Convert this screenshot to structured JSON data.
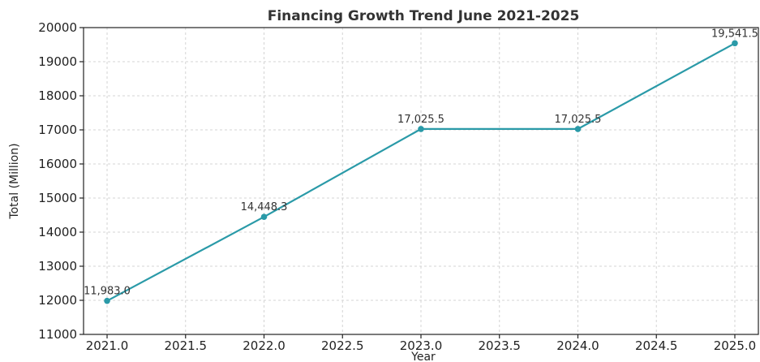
{
  "chart_data": {
    "type": "line",
    "title": "Financing Growth Trend June 2021-2025",
    "xlabel": "Year",
    "ylabel": "Total (Million)",
    "xlim": [
      2020.85,
      2025.15
    ],
    "ylim": [
      11000,
      20000
    ],
    "x_ticks": [
      2021.0,
      2021.5,
      2022.0,
      2022.5,
      2023.0,
      2023.5,
      2024.0,
      2024.5,
      2025.0
    ],
    "x_tick_labels": [
      "2021.0",
      "2021.5",
      "2022.0",
      "2022.5",
      "2023.0",
      "2023.5",
      "2024.0",
      "2024.5",
      "2025.0"
    ],
    "y_ticks": [
      11000,
      12000,
      13000,
      14000,
      15000,
      16000,
      17000,
      18000,
      19000,
      20000
    ],
    "y_tick_labels": [
      "11000",
      "12000",
      "13000",
      "14000",
      "15000",
      "16000",
      "17000",
      "18000",
      "19000",
      "20000"
    ],
    "grid": true,
    "series": [
      {
        "x": [
          2021,
          2022,
          2023,
          2024,
          2025
        ],
        "values": [
          11983.0,
          14448.3,
          17025.5,
          17025.5,
          19541.5
        ],
        "labels": [
          "11,983.0",
          "14,448.3",
          "17,025.5",
          "17,025.5",
          "19,541.5"
        ],
        "color": "#2a9aa8"
      }
    ]
  }
}
